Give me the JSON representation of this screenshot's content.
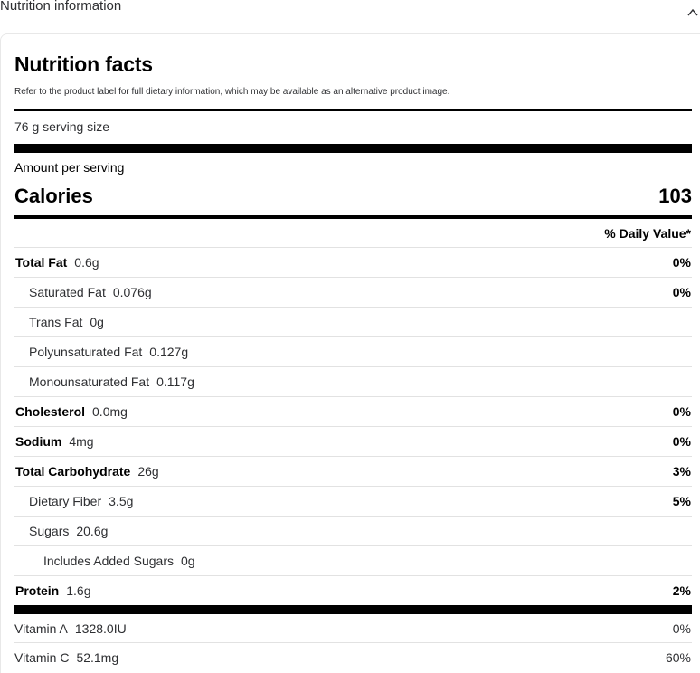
{
  "section": {
    "title": "Nutrition information",
    "toggle_icon": "chevron-up-icon"
  },
  "facts": {
    "title": "Nutrition facts",
    "subtitle": "Refer to the product label for full dietary information, which may be available as an alternative product image.",
    "serving_size": "76 g serving size",
    "amount_per_serving": "Amount per serving",
    "calories_label": "Calories",
    "calories_value": "103",
    "daily_value_header": "% Daily Value*"
  },
  "nutrients": [
    {
      "name": "Total Fat",
      "amount": "0.6g",
      "dv": "0%"
    },
    {
      "name": "Saturated Fat",
      "amount": "0.076g",
      "dv": "0%"
    },
    {
      "name": "Trans Fat",
      "amount": "0g",
      "dv": ""
    },
    {
      "name": "Polyunsaturated Fat",
      "amount": "0.127g",
      "dv": ""
    },
    {
      "name": "Monounsaturated Fat",
      "amount": "0.117g",
      "dv": ""
    },
    {
      "name": "Cholesterol",
      "amount": "0.0mg",
      "dv": "0%"
    },
    {
      "name": "Sodium",
      "amount": "4mg",
      "dv": "0%"
    },
    {
      "name": "Total Carbohydrate",
      "amount": "26g",
      "dv": "3%"
    },
    {
      "name": "Dietary Fiber",
      "amount": "3.5g",
      "dv": "5%"
    },
    {
      "name": "Sugars",
      "amount": "20.6g",
      "dv": ""
    },
    {
      "name": "Includes Added Sugars",
      "amount": "0g",
      "dv": ""
    },
    {
      "name": "Protein",
      "amount": "1.6g",
      "dv": "2%"
    }
  ],
  "vitamins": [
    {
      "name": "Vitamin A",
      "amount": "1328.0IU",
      "dv": "0%"
    },
    {
      "name": "Vitamin C",
      "amount": "52.1mg",
      "dv": "60%"
    }
  ]
}
